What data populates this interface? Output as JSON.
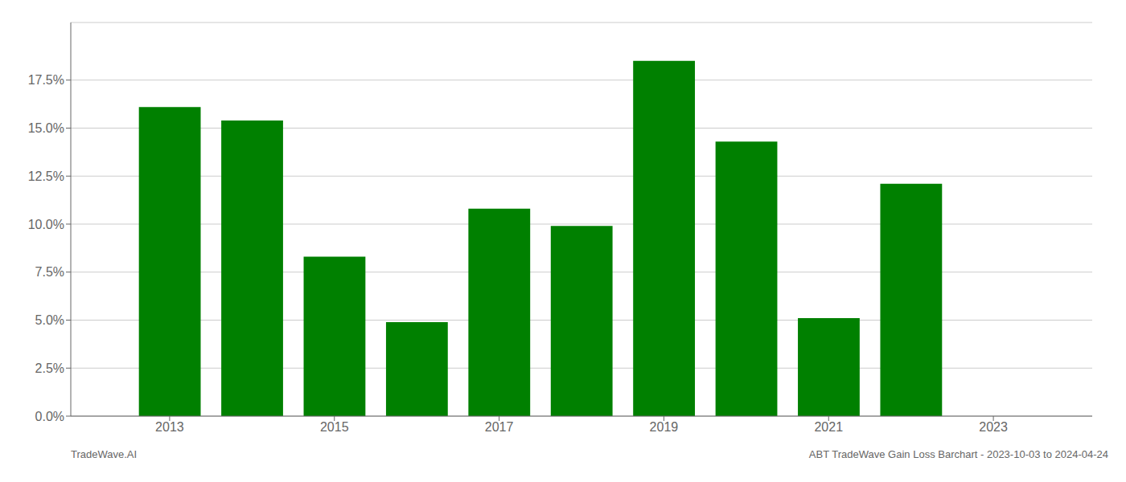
{
  "chart_data": {
    "type": "bar",
    "x": [
      2013,
      2014,
      2015,
      2016,
      2017,
      2018,
      2019,
      2020,
      2021,
      2022
    ],
    "values": [
      0.161,
      0.154,
      0.083,
      0.049,
      0.108,
      0.099,
      0.185,
      0.143,
      0.051,
      0.121
    ],
    "color": "#008000",
    "xlim": [
      2011.8,
      2024.2
    ],
    "xticks": [
      2013,
      2015,
      2017,
      2019,
      2021,
      2023
    ],
    "ylim": [
      0,
      0.205
    ],
    "yticks": [
      {
        "value": 0.0,
        "label": "0.0%"
      },
      {
        "value": 0.025,
        "label": "2.5%"
      },
      {
        "value": 0.05,
        "label": "5.0%"
      },
      {
        "value": 0.075,
        "label": "7.5%"
      },
      {
        "value": 0.1,
        "label": "10.0%"
      },
      {
        "value": 0.125,
        "label": "12.5%"
      },
      {
        "value": 0.15,
        "label": "15.0%"
      },
      {
        "value": 0.175,
        "label": "17.5%"
      }
    ],
    "grid": true,
    "annotations": [
      "TradeWave.AI",
      "ABT TradeWave Gain Loss Barchart - 2023-10-03 to 2024-04-24"
    ]
  }
}
